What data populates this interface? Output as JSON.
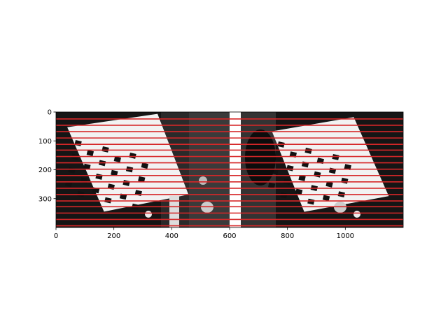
{
  "chart_data": {
    "type": "image",
    "title": "",
    "xlabel": "",
    "ylabel": "",
    "xlim": [
      0,
      1200
    ],
    "ylim": [
      400,
      0
    ],
    "x_ticks": [
      0,
      200,
      400,
      600,
      800,
      1000
    ],
    "y_ticks": [
      0,
      100,
      200,
      300
    ],
    "grid": false,
    "images": [
      {
        "name": "left-view",
        "x_range": [
          0,
          600
        ]
      },
      {
        "name": "right-view",
        "x_range": [
          640,
          1200
        ]
      }
    ],
    "horizontal_lines": {
      "color": "#d62728",
      "y": [
        24,
        46,
        68,
        90,
        112,
        132,
        154,
        176,
        198,
        220,
        242,
        264,
        286,
        308,
        328,
        350,
        372,
        394
      ]
    }
  },
  "colors": {
    "epiline": "#d62728",
    "axes": "#000000",
    "background": "#ffffff"
  }
}
